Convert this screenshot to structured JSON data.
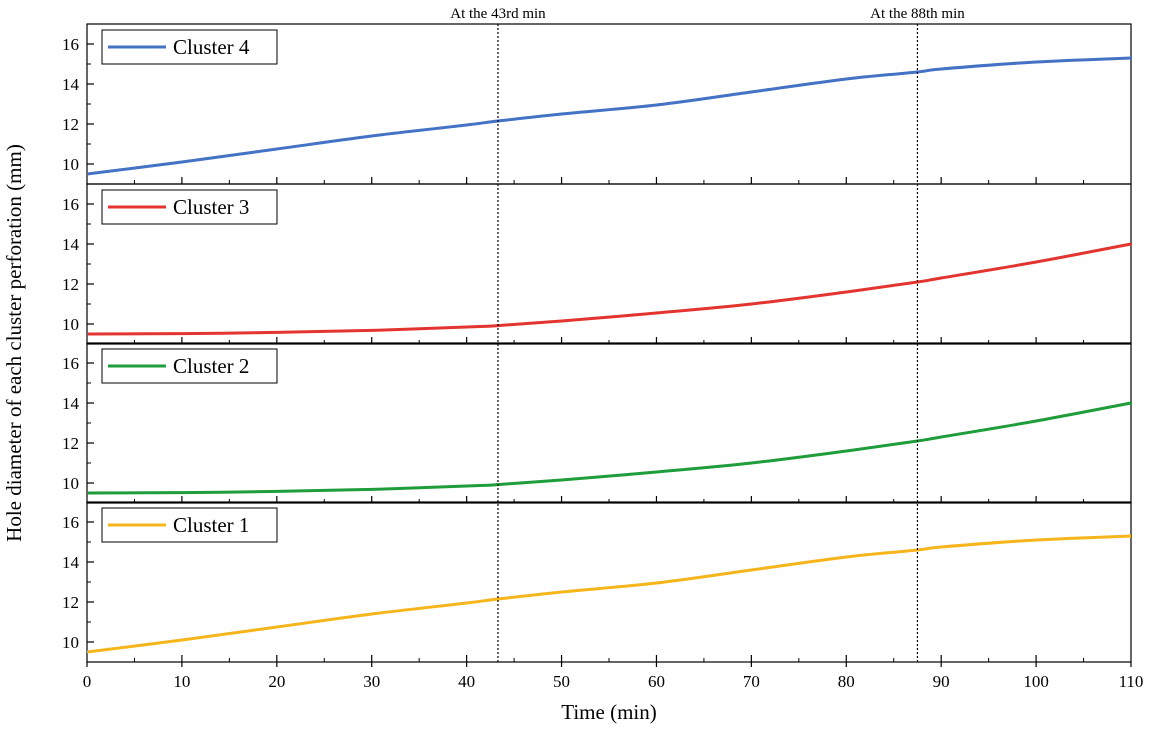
{
  "chart_data": {
    "type": "line",
    "xlabel": "Time (min)",
    "ylabel": "Hole diameter of each cluster perforation (mm)",
    "xlim": [
      0,
      110
    ],
    "x_ticks": [
      0,
      10,
      20,
      30,
      40,
      50,
      60,
      70,
      80,
      90,
      100,
      110
    ],
    "x_tick_labels": [
      "0",
      "10",
      "20",
      "30",
      "40",
      "50",
      "60",
      "70",
      "80",
      "90",
      "100",
      "110"
    ],
    "ylim": [
      9,
      17
    ],
    "y_ticks": [
      10,
      12,
      14,
      16
    ],
    "y_tick_labels": [
      "10",
      "12",
      "14",
      "16"
    ],
    "annotations": [
      {
        "x": 43.3,
        "label": "At the 43rd min"
      },
      {
        "x": 87.5,
        "label": "At the 88th min"
      }
    ],
    "panels": [
      {
        "name": "Cluster 4",
        "color": "#4472c4",
        "x": [
          0,
          10,
          20,
          30,
          40,
          43.3,
          50,
          60,
          70,
          80,
          87.5,
          90,
          100,
          110
        ],
        "values": [
          9.5,
          10.1,
          10.75,
          11.4,
          11.95,
          12.15,
          12.5,
          12.95,
          13.6,
          14.25,
          14.6,
          14.75,
          15.1,
          15.3
        ]
      },
      {
        "name": "Cluster 3",
        "color": "#e3342f",
        "x": [
          0,
          10,
          20,
          30,
          40,
          43.3,
          50,
          60,
          70,
          80,
          87.5,
          90,
          100,
          110
        ],
        "values": [
          9.5,
          9.52,
          9.58,
          9.68,
          9.85,
          9.92,
          10.15,
          10.55,
          11.0,
          11.6,
          12.1,
          12.3,
          13.1,
          14.0
        ]
      },
      {
        "name": "Cluster 2",
        "color": "#1e9d3a",
        "x": [
          0,
          10,
          20,
          30,
          40,
          43.3,
          50,
          60,
          70,
          80,
          87.5,
          90,
          100,
          110
        ],
        "values": [
          9.5,
          9.52,
          9.58,
          9.68,
          9.85,
          9.92,
          10.15,
          10.55,
          11.0,
          11.6,
          12.1,
          12.3,
          13.1,
          14.0
        ]
      },
      {
        "name": "Cluster 1",
        "color": "#f5b51b",
        "x": [
          0,
          10,
          20,
          30,
          40,
          43.3,
          50,
          60,
          70,
          80,
          87.5,
          90,
          100,
          110
        ],
        "values": [
          9.5,
          10.1,
          10.75,
          11.4,
          11.95,
          12.15,
          12.5,
          12.95,
          13.6,
          14.25,
          14.6,
          14.75,
          15.1,
          15.3
        ]
      }
    ]
  }
}
